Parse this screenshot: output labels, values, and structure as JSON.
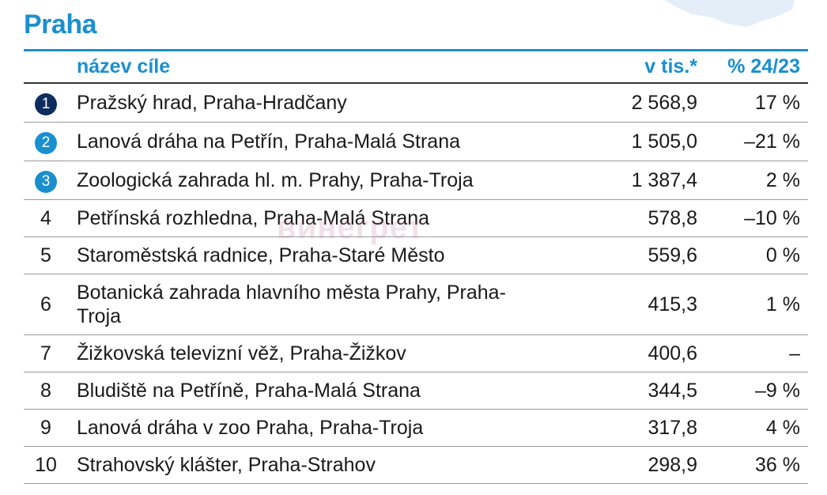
{
  "title": "Praha",
  "table": {
    "header": [
      "název cíle",
      "v tis.*",
      "% 24/23"
    ],
    "rows": [
      [
        "1",
        "Pražský hrad, Praha-Hradčany",
        "2 568,9",
        "17 %"
      ],
      [
        "2",
        "Lanová dráha na Petřín, Praha-Malá Strana",
        "1 505,0",
        "–21 %"
      ],
      [
        "3",
        "Zoologická zahrada hl. m. Prahy, Praha-Troja",
        "1 387,4",
        "2 %"
      ],
      [
        "4",
        "Petřínská rozhledna, Praha-Malá Strana",
        "578,8",
        "–10 %"
      ],
      [
        "5",
        "Staroměstská radnice, Praha-Staré Město",
        "559,6",
        "0 %"
      ],
      [
        "6",
        "Botanická zahrada hlavního města Prahy, Praha-Troja",
        "415,3",
        "1 %"
      ],
      [
        "7",
        "Žižkovská televizní věž, Praha-Žižkov",
        "400,6",
        "–"
      ],
      [
        "8",
        "Bludiště na Petříně, Praha-Malá Strana",
        "344,5",
        "–9 %"
      ],
      [
        "9",
        "Lanová dráha v zoo Praha, Praha-Troja",
        "317,8",
        "4 %"
      ],
      [
        "10",
        "Strahovský klášter, Praha-Strahov",
        "298,9",
        "36 %"
      ]
    ]
  },
  "watermark": "винегрет"
}
